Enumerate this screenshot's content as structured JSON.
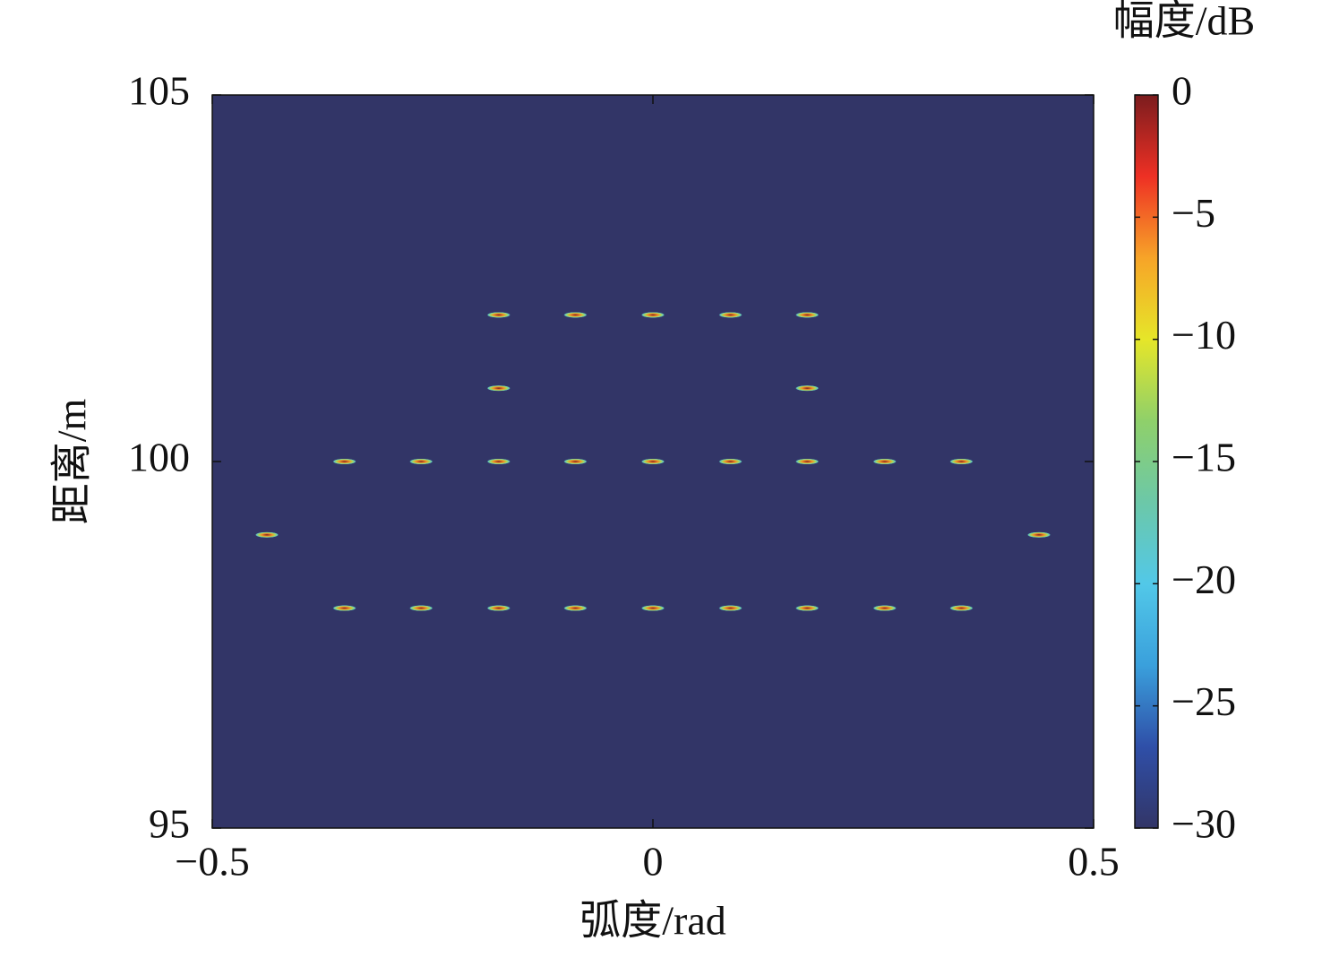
{
  "chart_data": {
    "type": "scatter",
    "xlabel": "弧度/rad",
    "ylabel": "距离/m",
    "colorbar_label": "幅度/dB",
    "x": [
      -0.175,
      -0.088,
      0,
      0.088,
      0.175,
      -0.175,
      0.175,
      -0.35,
      -0.263,
      -0.175,
      -0.088,
      0,
      0.088,
      0.175,
      0.263,
      0.35,
      -0.438,
      0.438,
      -0.35,
      -0.263,
      -0.175,
      -0.088,
      0,
      0.088,
      0.175,
      0.263,
      0.35
    ],
    "y": [
      102,
      102,
      102,
      102,
      102,
      101,
      101,
      100,
      100,
      100,
      100,
      100,
      100,
      100,
      100,
      100,
      99,
      99,
      98,
      98,
      98,
      98,
      98,
      98,
      98,
      98,
      98
    ],
    "values": [
      0,
      0,
      0,
      0,
      0,
      0,
      0,
      0,
      0,
      0,
      0,
      0,
      0,
      0,
      0,
      0,
      0,
      0,
      0,
      0,
      0,
      0,
      0,
      0,
      0,
      0,
      0
    ],
    "xlim": [
      -0.5,
      0.5
    ],
    "xticks": [
      {
        "value": -0.5,
        "label": "−0.5"
      },
      0,
      0.5
    ],
    "ylim": [
      95,
      105
    ],
    "yticks": [
      95,
      100,
      105
    ],
    "zlim": [
      -30,
      0
    ],
    "zticks": [
      0,
      {
        "value": -5,
        "label": "−5"
      },
      {
        "value": -10,
        "label": "−10"
      },
      {
        "value": -15,
        "label": "−15"
      },
      {
        "value": -20,
        "label": "−20"
      },
      {
        "value": -25,
        "label": "−25"
      },
      {
        "value": -30,
        "label": "−30"
      }
    ],
    "colormap": [
      "#323567",
      "#2f4fa8",
      "#3aa0dc",
      "#52c8e8",
      "#6cc8a8",
      "#8fd06a",
      "#e6e629",
      "#f7a428",
      "#ee3024",
      "#7b1c1e"
    ]
  }
}
